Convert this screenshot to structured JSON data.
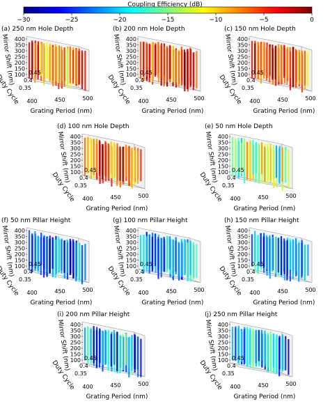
{
  "colorbar": {
    "title": "Coupling Efficiency (dB)",
    "ticks": [
      "−30",
      "−25",
      "−20",
      "−15",
      "−10",
      "−5",
      "0"
    ],
    "range": [
      -30,
      0
    ],
    "colormap": "jet",
    "colors": [
      "#00007f",
      "#0000ff",
      "#007fff",
      "#00ffff",
      "#7fff7f",
      "#ffff00",
      "#ff7f00",
      "#ff0000",
      "#7f0000"
    ]
  },
  "axes": {
    "z_label": "Mirror Shift (nm)",
    "y_label": "Duty Cycle",
    "x_label": "Grating Period (nm)",
    "z_ticks": [
      "400",
      "350",
      "300",
      "250",
      "200",
      "150",
      "100"
    ],
    "y_ticks": [
      "0.35",
      "0.4",
      "0.45"
    ],
    "x_ticks": [
      "400",
      "450",
      "500"
    ]
  },
  "panels": [
    {
      "label": "(a) 250 nm",
      "subtitle": "Hole Depth",
      "mean_db": -7
    },
    {
      "label": "(b) 200 nm",
      "subtitle": "Hole Depth",
      "mean_db": -4
    },
    {
      "label": "(c) 150 nm",
      "subtitle": "Hole Depth",
      "mean_db": -4
    },
    {
      "label": "(d) 100 nm",
      "subtitle": "Hole Depth",
      "mean_db": -6
    },
    {
      "label": "(e) 50 nm",
      "subtitle": "Hole Depth",
      "mean_db": -14
    },
    {
      "label": "(f) 50 nm",
      "subtitle": "Pillar Height",
      "mean_db": -23
    },
    {
      "label": "(g) 100 nm",
      "subtitle": "Pillar Height",
      "mean_db": -23
    },
    {
      "label": "(h) 150 nm",
      "subtitle": "Pillar Height",
      "mean_db": -22
    },
    {
      "label": "(i) 200 nm",
      "subtitle": "Pillar Height",
      "mean_db": -22
    },
    {
      "label": "(j) 250 nm",
      "subtitle": "Pillar Height",
      "mean_db": -21
    }
  ],
  "chart_data": {
    "type": "heatmap",
    "title": "Coupling Efficiency (dB)",
    "value_range": [
      -30,
      0
    ],
    "x_axis": {
      "label": "Grating Period (nm)",
      "ticks": [
        400,
        450,
        500
      ]
    },
    "y_axis": {
      "label": "Duty Cycle",
      "ticks": [
        0.35,
        0.4,
        0.45
      ]
    },
    "z_axis": {
      "label": "Mirror Shift (nm)",
      "ticks": [
        100,
        150,
        200,
        250,
        300,
        350,
        400
      ]
    },
    "series": [
      {
        "name": "(a) 250 nm Hole Depth",
        "approx_mean_db": -7
      },
      {
        "name": "(b) 200 nm Hole Depth",
        "approx_mean_db": -4
      },
      {
        "name": "(c) 150 nm Hole Depth",
        "approx_mean_db": -4
      },
      {
        "name": "(d) 100 nm Hole Depth",
        "approx_mean_db": -6
      },
      {
        "name": "(e) 50 nm Hole Depth",
        "approx_mean_db": -14
      },
      {
        "name": "(f) 50 nm Pillar Height",
        "approx_mean_db": -23
      },
      {
        "name": "(g) 100 nm Pillar Height",
        "approx_mean_db": -23
      },
      {
        "name": "(h) 150 nm Pillar Height",
        "approx_mean_db": -22
      },
      {
        "name": "(i) 200 nm Pillar Height",
        "approx_mean_db": -22
      },
      {
        "name": "(j) 250 nm Pillar Height",
        "approx_mean_db": -21
      }
    ]
  }
}
